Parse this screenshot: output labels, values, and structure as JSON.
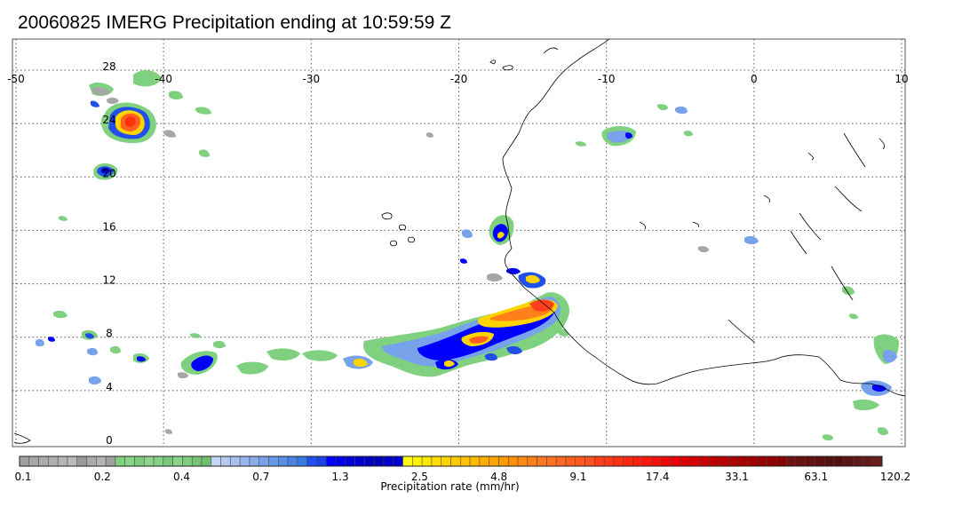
{
  "title": "20060825 IMERG Precipitation ending at 10:59:59 Z",
  "map": {
    "lon_range": [
      -50,
      10
    ],
    "lat_range": [
      -0.5,
      29.5
    ],
    "lon_ticks": [
      -50,
      -40,
      -30,
      -20,
      -10,
      0,
      10
    ],
    "lat_ticks": [
      0,
      4,
      8,
      12,
      16,
      20,
      24,
      28
    ],
    "grid": true,
    "grid_style": "dotted",
    "coastline_color": "#000000"
  },
  "colorbar": {
    "label": "Precipitation rate (mm/hr)",
    "tick_labels": [
      "0.1",
      "0.2",
      "0.4",
      "0.7",
      "1.3",
      "2.5",
      "4.8",
      "9.1",
      "17.4",
      "33.1",
      "63.1",
      "120.2"
    ],
    "groups": [
      {
        "name": "gray",
        "colors": [
          "#a0a0a0",
          "#a6a6a6",
          "#ababab",
          "#b0b0b0",
          "#b5b5b5",
          "#bababa",
          "#9a9a9a",
          "#aaaaaa",
          "#b4b4b4",
          "#a0a0a0"
        ]
      },
      {
        "name": "green",
        "colors": [
          "#7fd17f",
          "#88d688",
          "#7fcc7f",
          "#8fd48f",
          "#86d086",
          "#7ac87a",
          "#8ad38a",
          "#80cc80",
          "#75c475",
          "#6fbf6f"
        ]
      },
      {
        "name": "lightblue",
        "colors": [
          "#c4d4f2",
          "#b4c8f0",
          "#a8c0f0",
          "#98b6ee",
          "#88acec",
          "#78a2ea",
          "#6898e8",
          "#588ee6",
          "#4884e4",
          "#3878e2"
        ]
      },
      {
        "name": "blue",
        "colors": [
          "#2050e8",
          "#1a40e6",
          "#0000ff",
          "#0000e8",
          "#0000d8",
          "#0000cc",
          "#0000c0",
          "#0000b8",
          "#0000c8",
          "#0000d4"
        ]
      },
      {
        "name": "yellow",
        "colors": [
          "#ffff00",
          "#fff200",
          "#ffe800",
          "#ffde00",
          "#ffd400",
          "#ffca00",
          "#ffc000",
          "#ffb800",
          "#ffae00",
          "#ffa400"
        ]
      },
      {
        "name": "orange",
        "colors": [
          "#ff9a00",
          "#ff9000",
          "#ff8a10",
          "#ff8018",
          "#ff7820",
          "#ff7020",
          "#ff6820",
          "#ff6020",
          "#ff5820",
          "#ff5020"
        ]
      },
      {
        "name": "red",
        "colors": [
          "#ff4018",
          "#ff3818",
          "#ff3010",
          "#ff2810",
          "#ff2010",
          "#ff1808",
          "#f81008",
          "#f00808",
          "#e80404",
          "#e00000"
        ]
      },
      {
        "name": "darkred",
        "colors": [
          "#d80000",
          "#cc0000",
          "#c00000",
          "#b80000",
          "#b00000",
          "#a80000",
          "#a00000",
          "#980000",
          "#900000",
          "#880000"
        ]
      },
      {
        "name": "brown",
        "colors": [
          "#701010",
          "#681010",
          "#601010",
          "#5a1010",
          "#541010",
          "#501010",
          "#5a1414",
          "#601818",
          "#641a1a",
          "#681c1c"
        ]
      }
    ]
  }
}
